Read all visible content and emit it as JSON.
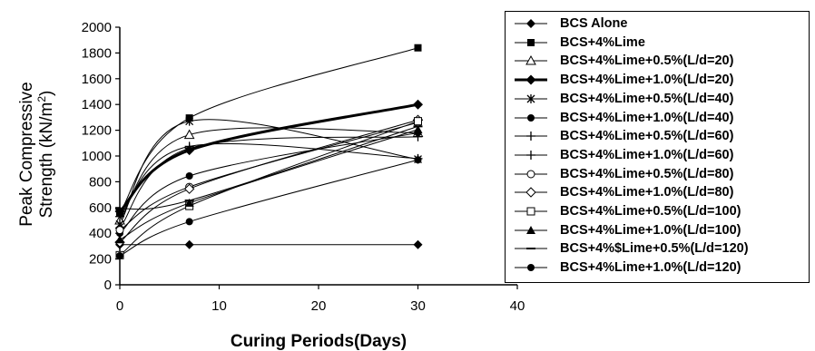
{
  "chart_data": {
    "type": "line",
    "xlabel": "Curing Periods(Days)",
    "ylabel_line1": "Peak Compressive",
    "ylabel_line2": "Strength (kN/m²)",
    "xlim": [
      0,
      40
    ],
    "ylim": [
      0,
      2000
    ],
    "x_ticks": [
      "0",
      "10",
      "20",
      "30",
      "40"
    ],
    "y_ticks": [
      "0",
      "200",
      "400",
      "600",
      "800",
      "1000",
      "1200",
      "1400",
      "1600",
      "1800",
      "2000"
    ],
    "x": [
      0,
      7,
      30
    ],
    "legend_placement": "right",
    "grid": false,
    "series": [
      {
        "name": "BCS Alone",
        "marker": "diamond",
        "values": [
          312,
          312,
          312
        ]
      },
      {
        "name": "BCS+4%Lime",
        "marker": "square",
        "values": [
          560,
          1295,
          1840
        ]
      },
      {
        "name": "BCS+4%Lime+0.5%(L/d=20)",
        "marker": "triangle-open",
        "values": [
          500,
          1165,
          1180
        ]
      },
      {
        "name": "BCS+4%Lime+1.0%(L/d=20)",
        "marker": "diamond",
        "bold": true,
        "values": [
          570,
          1045,
          1400
        ]
      },
      {
        "name": "BCS+4%Lime+0.5%(L/d=40)",
        "marker": "star",
        "values": [
          470,
          1270,
          975
        ]
      },
      {
        "name": "BCS+4%Lime+1.0%(L/d=40)",
        "marker": "circle",
        "values": [
          400,
          845,
          1180
        ]
      },
      {
        "name": "BCS+4%Lime+0.5%(L/d=60)",
        "marker": "plus",
        "values": [
          440,
          1060,
          1150
        ]
      },
      {
        "name": "BCS+4%Lime+1.0%(L/d=60)",
        "marker": "plus",
        "values": [
          530,
          1075,
          980
        ]
      },
      {
        "name": "BCS+4%Lime+0.5%(L/d=80)",
        "marker": "circle-open",
        "values": [
          425,
          760,
          1260
        ]
      },
      {
        "name": "BCS+4%Lime+1.0%(L/d=80)",
        "marker": "diamond-open",
        "values": [
          330,
          745,
          1280
        ]
      },
      {
        "name": "BCS+4%Lime+0.5%(L/d=100)",
        "marker": "square-open",
        "values": [
          230,
          612,
          1270
        ]
      },
      {
        "name": "BCS+4%Lime+1.0%(L/d=100)",
        "marker": "triangle",
        "values": [
          350,
          635,
          1205
        ]
      },
      {
        "name": "BCS+4%$Lime+0.5%(L/d=120)",
        "marker": "dash",
        "values": [
          590,
          655,
          1230
        ]
      },
      {
        "name": "BCS+4%Lime+1.0%(L/d=120)",
        "marker": "circle",
        "values": [
          225,
          490,
          970
        ]
      }
    ]
  }
}
